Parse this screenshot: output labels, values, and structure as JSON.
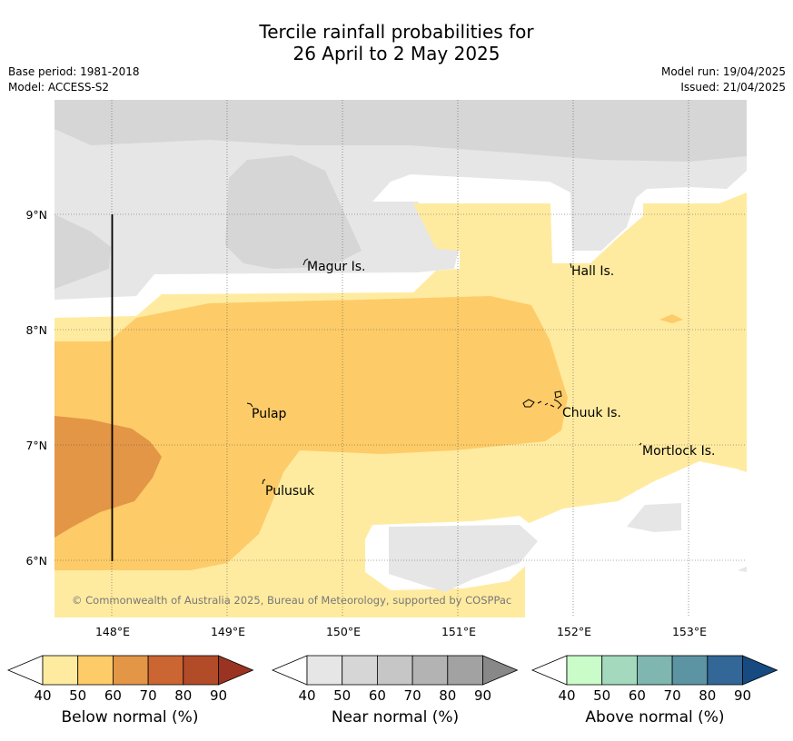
{
  "header": {
    "title_line1": "Tercile rainfall probabilities for",
    "title_line2": "26 April to 2 May 2025",
    "base_period": "Base period: 1981-2018",
    "model": "Model: ACCESS-S2",
    "model_run": "Model run: 19/04/2025",
    "issued": "Issued: 21/04/2025"
  },
  "map": {
    "lat_labels": [
      "9°N",
      "8°N",
      "7°N",
      "6°N"
    ],
    "lon_labels": [
      "148°E",
      "149°E",
      "150°E",
      "151°E",
      "152°E",
      "153°E"
    ],
    "places": [
      "Magur Is.",
      "Hall Is.",
      "Pulap",
      "Chuuk Is.",
      "Mortlock Is.",
      "Pulusuk"
    ],
    "copyright": "© Commonwealth of Australia 2025, Bureau of Meteorology, supported by COSPPac"
  },
  "legends": [
    {
      "title": "Below normal (%)",
      "ticks": [
        "40",
        "50",
        "60",
        "70",
        "80",
        "90"
      ],
      "colors": [
        "#ffffff",
        "#ffeba0",
        "#fdcb68",
        "#e39646",
        "#cb6531",
        "#b24b28",
        "#9a3321"
      ]
    },
    {
      "title": "Near normal (%)",
      "ticks": [
        "40",
        "50",
        "60",
        "70",
        "80",
        "90"
      ],
      "colors": [
        "#ffffff",
        "#e6e6e6",
        "#d6d6d6",
        "#c6c6c6",
        "#b3b3b3",
        "#a2a2a2",
        "#888888"
      ]
    },
    {
      "title": "Above normal (%)",
      "ticks": [
        "40",
        "50",
        "60",
        "70",
        "80",
        "90"
      ],
      "colors": [
        "#ffffff",
        "#c9fcc9",
        "#a4d9bd",
        "#80b6b0",
        "#5c94a4",
        "#326797",
        "#164a80"
      ]
    }
  ]
}
